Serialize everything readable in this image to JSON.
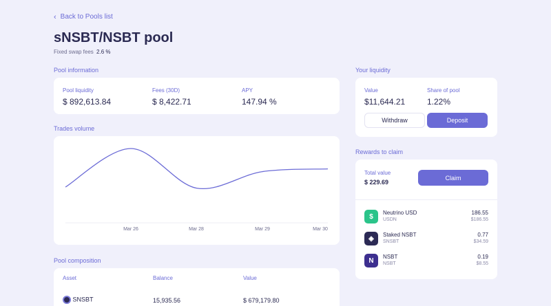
{
  "nav": {
    "back_label": "Back to Pools list"
  },
  "pool": {
    "title": "sNSBT/NSBT pool",
    "fees_label": "Fixed swap fees",
    "fees_value": "2.6 %"
  },
  "pool_info": {
    "section_label": "Pool information",
    "liquidity_label": "Pool liquidity",
    "liquidity_value": "$ 892,613.84",
    "fees_label": "Fees (30D)",
    "fees_value": "$ 8,422.71",
    "apy_label": "APY",
    "apy_value": "147.94 %"
  },
  "trades": {
    "section_label": "Trades volume"
  },
  "chart_data": {
    "type": "line",
    "title": "Trades volume",
    "x_ticks": [
      "Mar 26",
      "Mar 28",
      "Mar 29",
      "Mar 30"
    ],
    "series": [
      {
        "points": [
          {
            "x": 0.0,
            "y": 0.3
          },
          {
            "x": 0.25,
            "y": 1.0
          },
          {
            "x": 0.5,
            "y": 0.28
          },
          {
            "x": 0.75,
            "y": 0.58
          },
          {
            "x": 1.0,
            "y": 0.63
          }
        ]
      }
    ],
    "grid": false,
    "line_color": "#6b6bd6"
  },
  "composition": {
    "section_label": "Pool composition",
    "headers": {
      "asset": "Asset",
      "balance": "Balance",
      "value": "Value"
    },
    "rows": [
      {
        "asset": "SNSBT",
        "balance": "15,935.56",
        "value": "$ 679,179.80"
      }
    ]
  },
  "liquidity": {
    "section_label": "Your liquidity",
    "value_label": "Value",
    "value": "$11,644.21",
    "share_label": "Share of pool",
    "share": "1.22%",
    "withdraw_label": "Withdraw",
    "deposit_label": "Deposit"
  },
  "rewards": {
    "section_label": "Rewards to claim",
    "total_label": "Total value",
    "total_value": "$ 229.69",
    "claim_label": "Claim",
    "tokens": [
      {
        "name": "Neutrino USD",
        "symbol": "USDN",
        "amount": "186.55",
        "usd": "$186.55",
        "icon": "neutrino-usd-icon",
        "color": "#2bc48a"
      },
      {
        "name": "Staked NSBT",
        "symbol": "SNSBT",
        "amount": "0.77",
        "usd": "$34.59",
        "icon": "staked-nsbt-icon",
        "color": "#2c2a55"
      },
      {
        "name": "NSBT",
        "symbol": "NSBT",
        "amount": "0.19",
        "usd": "$8.55",
        "icon": "nsbt-icon",
        "color": "#3d2f8f"
      }
    ]
  },
  "colors": {
    "accent": "#6b6bd6",
    "background": "#f0f0fb",
    "text": "#2b2a52"
  }
}
